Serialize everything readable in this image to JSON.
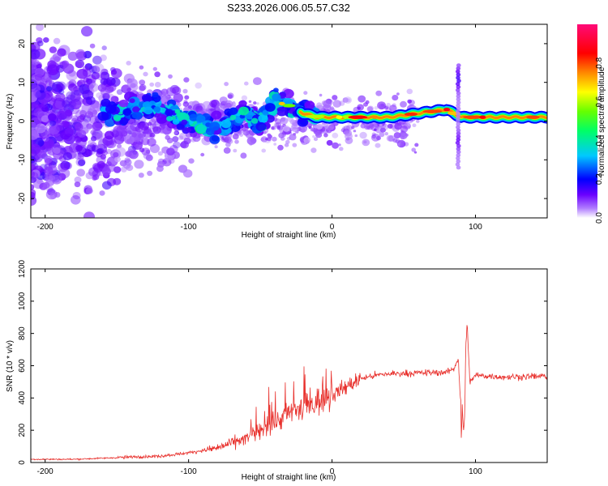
{
  "title": "S233.2026.006.05.57.C32",
  "chart_data": [
    {
      "type": "heatmap",
      "name": "spectrogram",
      "xlabel": "Height of straight line (km)",
      "ylabel": "Frequency (Hz)",
      "xlim": [
        -210,
        150
      ],
      "ylim": [
        -25,
        25
      ],
      "xticks": [
        -200,
        -100,
        0,
        100
      ],
      "yticks": [
        -20,
        -10,
        0,
        10,
        20
      ],
      "colorbar": {
        "label": "Normalized spectral amplitude",
        "range": [
          0.0,
          1.0
        ],
        "ticks": [
          0.0,
          0.2,
          0.4,
          0.6,
          0.8
        ]
      },
      "ridge": {
        "description_points_x_km": [
          -150,
          -130,
          -110,
          -90,
          -80,
          -70,
          -60,
          -50,
          -40,
          -30,
          -20,
          -10,
          0,
          10,
          20,
          40,
          60,
          80,
          85,
          90,
          100,
          120,
          150
        ],
        "center_freq_hz": [
          2,
          4,
          2,
          -1,
          -2,
          0,
          2,
          -1,
          5,
          4,
          2,
          1,
          1,
          1,
          1,
          1,
          2,
          3,
          2,
          1,
          1,
          1,
          1
        ]
      },
      "spike_x_km": 88
    },
    {
      "type": "line",
      "name": "snr",
      "xlabel": "Height of straight line (km)",
      "ylabel": "SNR (10 * v/v)",
      "xlim": [
        -210,
        150
      ],
      "ylim": [
        0,
        1200
      ],
      "xticks": [
        -200,
        -100,
        0,
        100
      ],
      "yticks": [
        0,
        200,
        400,
        600,
        800,
        1000,
        1200
      ],
      "series": [
        {
          "name": "SNR",
          "color": "#e8302c",
          "x": [
            -210,
            -180,
            -150,
            -120,
            -100,
            -80,
            -60,
            -50,
            -40,
            -30,
            -20,
            -10,
            0,
            10,
            20,
            30,
            40,
            60,
            80,
            85,
            88,
            90,
            92,
            94,
            96,
            100,
            120,
            150
          ],
          "y": [
            20,
            20,
            30,
            40,
            60,
            90,
            150,
            190,
            250,
            300,
            330,
            380,
            420,
            470,
            520,
            540,
            550,
            555,
            560,
            580,
            650,
            300,
            150,
            900,
            500,
            540,
            530,
            535
          ]
        }
      ]
    }
  ]
}
